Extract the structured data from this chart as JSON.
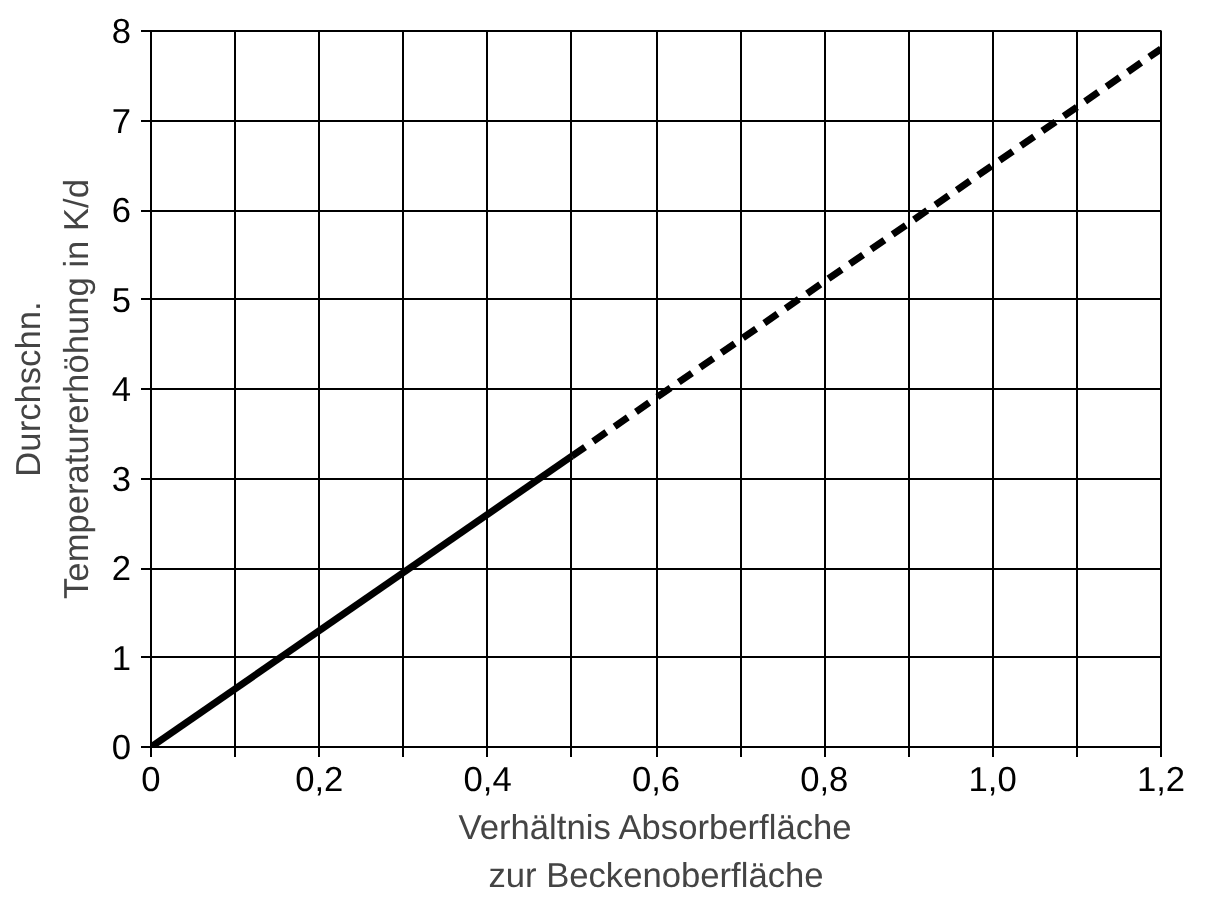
{
  "chart_data": {
    "type": "line",
    "xlabel": "Verhältnis Absorberfläche\nzur Beckenoberfläche",
    "ylabel": "Durchschn.\nTemperaturerhöhung in K/d",
    "xlim": [
      0,
      1.2
    ],
    "ylim": [
      0,
      8
    ],
    "xticks": [
      {
        "value": 0,
        "label": "0"
      },
      {
        "value": 0.1,
        "label": null
      },
      {
        "value": 0.2,
        "label": "0,2"
      },
      {
        "value": 0.3,
        "label": null
      },
      {
        "value": 0.4,
        "label": "0,4"
      },
      {
        "value": 0.5,
        "label": null
      },
      {
        "value": 0.6,
        "label": "0,6"
      },
      {
        "value": 0.7,
        "label": null
      },
      {
        "value": 0.8,
        "label": "0,8"
      },
      {
        "value": 0.9,
        "label": null
      },
      {
        "value": 1.0,
        "label": "1,0"
      },
      {
        "value": 1.1,
        "label": null
      },
      {
        "value": 1.2,
        "label": "1,2"
      }
    ],
    "yticks": [
      0,
      1,
      2,
      3,
      4,
      5,
      6,
      7,
      8
    ],
    "grid": true,
    "series": [
      {
        "color": "#000000",
        "x": [
          0,
          0.5
        ],
        "values": [
          0,
          3.25
        ],
        "line_style": "solid"
      },
      {
        "color": "#000000",
        "x": [
          0.5,
          1.2
        ],
        "values": [
          3.25,
          7.8
        ],
        "line_style": "dashed"
      }
    ]
  }
}
